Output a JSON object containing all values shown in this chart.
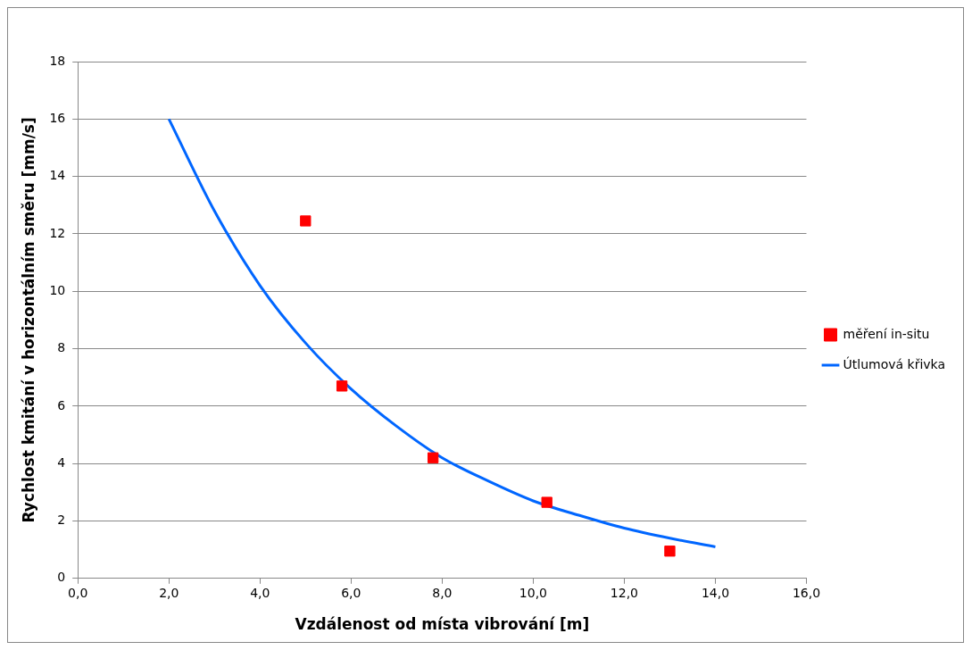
{
  "chart_data": {
    "type": "scatter",
    "xlabel": "Vzdálenost od místa vibrování [m]",
    "ylabel": "Rychlost kmitání v horizontálním směru [mm/s]",
    "xlim": [
      0,
      16
    ],
    "xticks": [
      {
        "value": 0,
        "label": "0,0"
      },
      {
        "value": 2,
        "label": "2,0"
      },
      {
        "value": 4,
        "label": "4,0"
      },
      {
        "value": 6,
        "label": "6,0"
      },
      {
        "value": 8,
        "label": "8,0"
      },
      {
        "value": 10,
        "label": "10,0"
      },
      {
        "value": 12,
        "label": "12,0"
      },
      {
        "value": 14,
        "label": "14,0"
      },
      {
        "value": 16,
        "label": "16,0"
      }
    ],
    "ylim": [
      0,
      18
    ],
    "yticks": [
      0,
      2,
      4,
      6,
      8,
      10,
      12,
      14,
      16,
      18
    ],
    "grid": "y",
    "legend": "right",
    "series": [
      {
        "name": "měření in-situ",
        "color": "#ff0000",
        "marker": "square",
        "x": [
          5.0,
          5.8,
          7.8,
          10.3,
          13.0
        ],
        "values": [
          12.45,
          6.7,
          4.2,
          2.65,
          0.95
        ]
      },
      {
        "name": "Útlumová křivka",
        "type": "line",
        "color": "#0066ff",
        "marker": "none",
        "line_style": "solid",
        "x": [
          2,
          3,
          4,
          5,
          6,
          7,
          8,
          9,
          10,
          11,
          12,
          13,
          14
        ],
        "values": [
          16,
          12.8,
          10.2,
          8.2,
          6.6,
          5.3,
          4.2,
          3.4,
          2.7,
          2.2,
          1.75,
          1.4,
          1.1
        ]
      }
    ]
  }
}
